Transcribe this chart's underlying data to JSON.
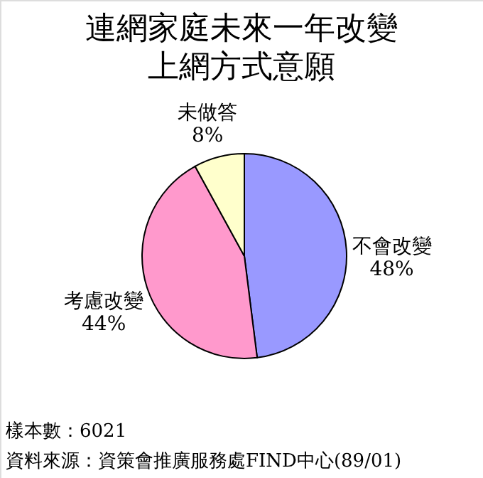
{
  "chart_data": {
    "type": "pie",
    "title": "連網家庭未來一年改變上網方式意願",
    "categories": [
      "不會改變",
      "考慮改變",
      "未做答"
    ],
    "values": [
      48,
      44,
      8
    ],
    "colors": [
      "#9999ff",
      "#ff99cc",
      "#ffffcc"
    ],
    "value_labels": [
      "48%",
      "44%",
      "8%"
    ],
    "annotations": [
      "樣本數：6021",
      "資料來源：資策會推廣服務處FIND中心(89/01)"
    ]
  }
}
